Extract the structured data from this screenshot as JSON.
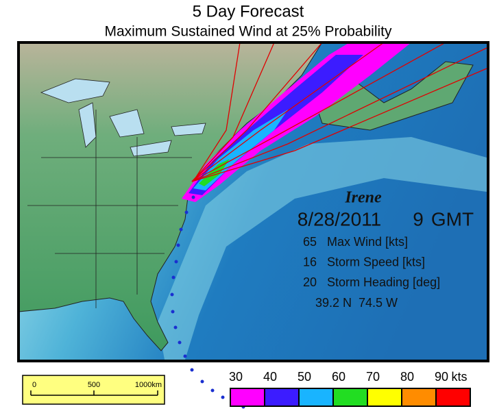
{
  "header": {
    "title": "5 Day Forecast",
    "subtitle": "Maximum Sustained Wind at 25% Probability"
  },
  "storm": {
    "name": "Irene",
    "date": "8/28/2011",
    "time": "9",
    "zone": "GMT",
    "stats": [
      {
        "value": 65,
        "label": "Max Wind [kts]"
      },
      {
        "value": 16,
        "label": "Storm Speed [kts]"
      },
      {
        "value": 20,
        "label": "Storm Heading [deg]"
      }
    ],
    "position": "39.2 N  74.5 W"
  },
  "scale_bar": {
    "labels": [
      "0",
      "500",
      "1000km"
    ]
  },
  "legend": {
    "unit": "kts",
    "items": [
      {
        "label": 30,
        "color": "#ff00ff"
      },
      {
        "label": 40,
        "color": "#3c1cff"
      },
      {
        "label": 50,
        "color": "#19b4ff"
      },
      {
        "label": 60,
        "color": "#22dd22"
      },
      {
        "label": 70,
        "color": "#ffff00"
      },
      {
        "label": 80,
        "color": "#ff8c00"
      },
      {
        "label": 90,
        "color": "#ff0000"
      }
    ]
  }
}
